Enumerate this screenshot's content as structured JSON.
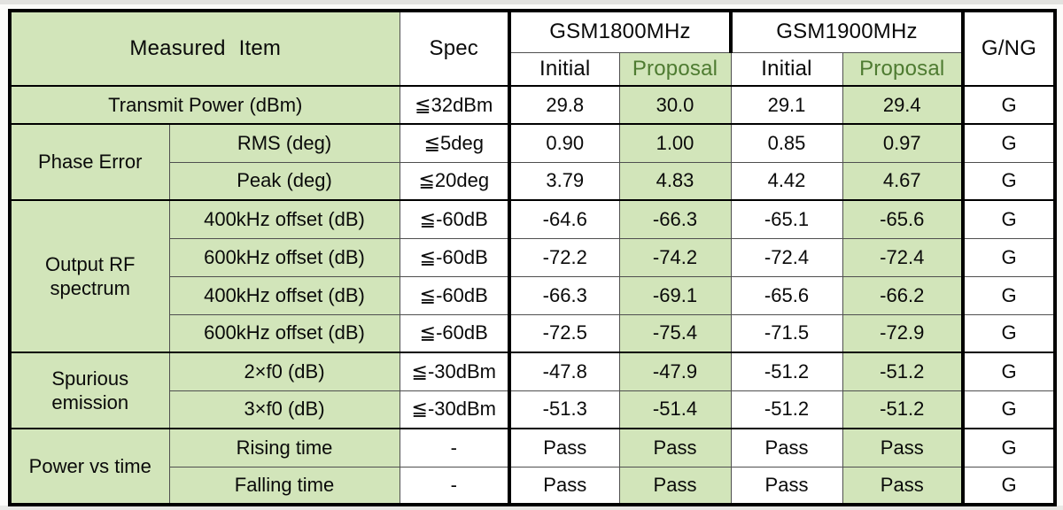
{
  "table": {
    "header": {
      "measured_item": "Measured Item",
      "spec": "Spec",
      "groups": [
        "GSM1800MHz",
        "GSM1900MHz"
      ],
      "sub": [
        "Initial",
        "Proposal",
        "Initial",
        "Proposal"
      ],
      "gng": "G/NG"
    },
    "rows": [
      {
        "group": "Transmit Power (dBm)",
        "group_rows": 1,
        "full_width": true,
        "spec": "≦32dBm",
        "values": [
          "29.8",
          "30.0",
          "29.1",
          "29.4"
        ],
        "gng": "G"
      },
      {
        "group": "Phase Error",
        "group_rows": 2,
        "item": "RMS (deg)",
        "spec": "≦5deg",
        "values": [
          "0.90",
          "1.00",
          "0.85",
          "0.97"
        ],
        "gng": "G"
      },
      {
        "item": "Peak (deg)",
        "spec": "≦20deg",
        "values": [
          "3.79",
          "4.83",
          "4.42",
          "4.67"
        ],
        "gng": "G"
      },
      {
        "group": "Output RF spectrum",
        "group_rows": 4,
        "item": "400kHz offset (dB)",
        "spec": "≦-60dB",
        "values": [
          "-64.6",
          "-66.3",
          "-65.1",
          "-65.6"
        ],
        "gng": "G"
      },
      {
        "item": "600kHz offset (dB)",
        "spec": "≦-60dB",
        "values": [
          "-72.2",
          "-74.2",
          "-72.4",
          "-72.4"
        ],
        "gng": "G"
      },
      {
        "item": "400kHz offset (dB)",
        "spec": "≦-60dB",
        "values": [
          "-66.3",
          "-69.1",
          "-65.6",
          "-66.2"
        ],
        "gng": "G"
      },
      {
        "item": "600kHz offset (dB)",
        "spec": "≦-60dB",
        "values": [
          "-72.5",
          "-75.4",
          "-71.5",
          "-72.9"
        ],
        "gng": "G"
      },
      {
        "group": "Spurious emission",
        "group_rows": 2,
        "item": "2×f0 (dB)",
        "spec": "≦-30dBm",
        "values": [
          "-47.8",
          "-47.9",
          "-51.2",
          "-51.2"
        ],
        "gng": "G"
      },
      {
        "item": "3×f0 (dB)",
        "spec": "≦-30dBm",
        "values": [
          "-51.3",
          "-51.4",
          "-51.2",
          "-51.2"
        ],
        "gng": "G"
      },
      {
        "group": "Power vs time",
        "group_rows": 2,
        "item": "Rising time",
        "spec": "-",
        "values": [
          "Pass",
          "Pass",
          "Pass",
          "Pass"
        ],
        "gng": "G"
      },
      {
        "item": "Falling time",
        "spec": "-",
        "values": [
          "Pass",
          "Pass",
          "Pass",
          "Pass"
        ],
        "gng": "G"
      }
    ],
    "colors": {
      "cell_green": "#d2e5ba",
      "proposal_text": "#4e7b31",
      "border_black": "#000000",
      "thin_line": "#4f4f4f"
    }
  }
}
